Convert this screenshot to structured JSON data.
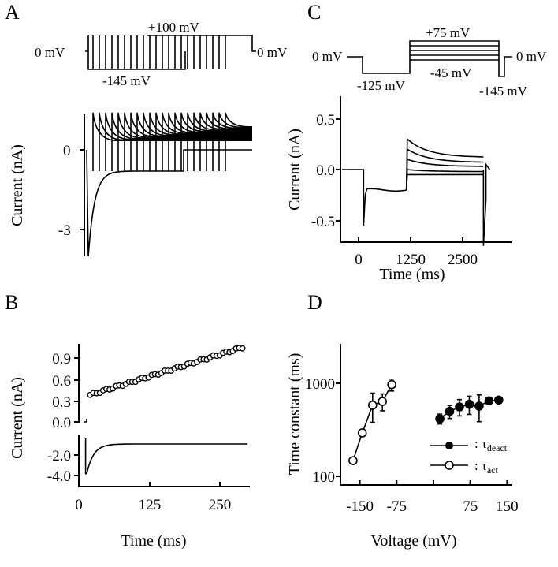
{
  "panels": {
    "a": "A",
    "b": "B",
    "c": "C",
    "d": "D"
  },
  "chart_data": [
    {
      "panel": "A",
      "type": "line",
      "ylabel": "Current (nA)",
      "yticks": [
        "0",
        "-3"
      ],
      "protocol_labels": {
        "hold_left": "0 mV",
        "hold_right": "0 mV",
        "step_up": "+100 mV",
        "step_down": "-145 mV"
      },
      "sweeps": 22,
      "peak_inward_nA": -4.0,
      "steady_inward_nA": -0.8,
      "outward_nA": 0.9
    },
    {
      "panel": "B",
      "type": "scatter",
      "ylabel": "Current (nA)",
      "xlabel": "Time (ms)",
      "xticks": [
        "0",
        "125",
        "250"
      ],
      "xlim": [
        0,
        300
      ],
      "yticks_top": [
        "0.9",
        "0.6",
        "0.3",
        "0.0"
      ],
      "yticks_bottom": [
        "-2.0",
        "-4.0"
      ],
      "outward_points": {
        "t_start": 20,
        "t_end": 290,
        "i_start": 0.38,
        "i_end": 1.05,
        "count": 48
      },
      "inward_trace": {
        "peak": -3.8,
        "steady": -0.9,
        "tau_ms": 12
      }
    },
    {
      "panel": "C",
      "type": "line",
      "ylabel": "Current (nA)",
      "xlabel": "Time (ms)",
      "xticks": [
        "0",
        "1250",
        "2500"
      ],
      "yticks": [
        "0.5",
        "0.0",
        "-0.5"
      ],
      "xlim": [
        -400,
        3200
      ],
      "ylim": [
        -0.7,
        0.7
      ],
      "protocol_labels": {
        "hold_left": "0 mV",
        "hold_right": "0 mV",
        "top": "+75 mV",
        "bottom": "-45 mV",
        "pre": "-125 mV",
        "tail": "-145 mV"
      },
      "traces_start_nA": [
        0.3,
        0.2,
        0.1,
        0.0,
        -0.05
      ],
      "traces_end_nA": [
        0.12,
        0.07,
        0.03,
        -0.02,
        -0.05
      ],
      "prepulse_nA": -0.2
    },
    {
      "panel": "D",
      "type": "scatter",
      "ylabel": "Time constant (ms)",
      "xlabel": "Voltage (mV)",
      "xticks": [
        {
          "v": -150,
          "label": "-150"
        },
        {
          "v": -75,
          "label": "-75"
        },
        {
          "v": 0,
          "label": ""
        },
        {
          "v": 75,
          "label": "75"
        },
        {
          "v": 150,
          "label": "150"
        }
      ],
      "yticks": [
        {
          "v": 100,
          "label": "100"
        },
        {
          "v": 1000,
          "label": "1000"
        }
      ],
      "xlim": [
        -190,
        190
      ],
      "ylim": [
        100,
        2500
      ],
      "yscale": "log",
      "series": [
        {
          "name": "τdeact",
          "label_main": ": τ",
          "label_sub": "deact",
          "marker": "filled",
          "x": [
            13,
            33,
            53,
            73,
            93,
            113,
            133
          ],
          "y": [
            415,
            497,
            555,
            592,
            566,
            645,
            658
          ],
          "err": [
            50,
            80,
            110,
            130,
            180,
            20,
            15
          ]
        },
        {
          "name": "τact",
          "label_main": ": τ",
          "label_sub": "act",
          "marker": "open",
          "x": [
            -164,
            -145,
            -124,
            -104,
            -85
          ],
          "y": [
            148,
            293,
            580,
            635,
            961
          ],
          "err": [
            0,
            25,
            200,
            130,
            140
          ]
        }
      ]
    }
  ]
}
